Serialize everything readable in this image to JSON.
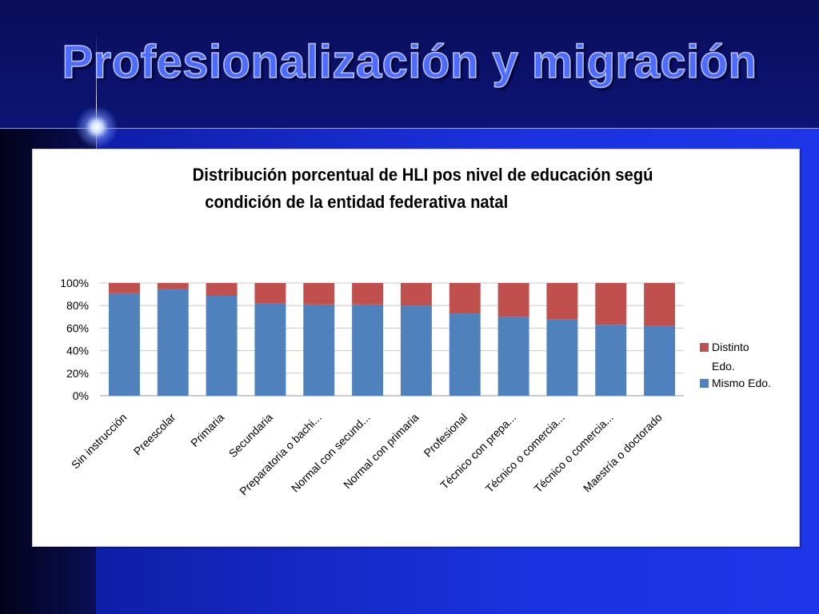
{
  "slide": {
    "title": "Profesionalización y migración"
  },
  "chart_data": {
    "type": "bar",
    "stacked": true,
    "percent_stacked": true,
    "title_lines": [
      "Distribución porcentual de HLI pos nivel de educación segú",
      "condición de la entidad federativa natal"
    ],
    "categories": [
      "Sin instrucción",
      "Preescolar",
      "Primaria",
      "Secundaria",
      "Preparatoria o bachi...",
      "Normal con secund...",
      "Normal con primaria",
      "Profesional",
      "Técnico con prepa...",
      "Técnico o comercia...",
      "Técnico o comercia...",
      "Maestría o doctorado"
    ],
    "series": [
      {
        "name": "Mismo Edo.",
        "color": "#4f81bd",
        "values": [
          91,
          95,
          89,
          82,
          81,
          81,
          80,
          73,
          70,
          68,
          63,
          62
        ]
      },
      {
        "name": "Distinto Edo.",
        "color": "#c0504d",
        "values": [
          9,
          5,
          11,
          18,
          19,
          19,
          20,
          27,
          30,
          32,
          37,
          38
        ]
      }
    ],
    "y_ticks": [
      "0%",
      "20%",
      "40%",
      "60%",
      "80%",
      "100%"
    ],
    "ylim": [
      0,
      100
    ],
    "grid": true,
    "legend_position": "right",
    "legend_entries": [
      {
        "label_lines": [
          "Distinto",
          "Edo."
        ],
        "color": "#c0504d"
      },
      {
        "label_lines": [
          "Mismo Edo."
        ],
        "color": "#4f81bd"
      }
    ]
  }
}
